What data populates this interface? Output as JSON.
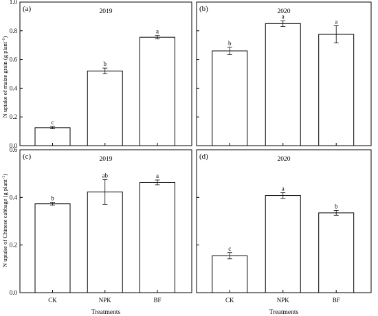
{
  "figure": {
    "xlabel": "Treatments",
    "ylabel_top_main": "N uptake of maize grain (g plant",
    "ylabel_bottom_main": "N uptake of Chinese cabbage (g plant",
    "ylabel_suffix": ")",
    "ylabel_sup": "-1"
  },
  "chart_data": [
    {
      "type": "bar",
      "panel_label": "(a)",
      "title": "2019",
      "categories": [
        "CK",
        "NPK",
        "BF"
      ],
      "values": [
        0.125,
        0.52,
        0.755
      ],
      "errors": [
        0.008,
        0.02,
        0.012
      ],
      "significance": [
        "c",
        "b",
        "a"
      ],
      "ylim": [
        0,
        1.0
      ],
      "yticks": [
        "0.0",
        "0.2",
        "0.4",
        "0.6",
        "0.8",
        "1.0"
      ],
      "grid": false
    },
    {
      "type": "bar",
      "panel_label": "(b)",
      "title": "2020",
      "categories": [
        "CK",
        "NPK",
        "BF"
      ],
      "values": [
        0.66,
        0.85,
        0.775
      ],
      "errors": [
        0.025,
        0.02,
        0.06
      ],
      "significance": [
        "b",
        "a",
        "a"
      ],
      "ylim": [
        0,
        1.0
      ],
      "grid": false
    },
    {
      "type": "bar",
      "panel_label": "(c)",
      "title": "2019",
      "categories": [
        "CK",
        "NPK",
        "BF"
      ],
      "values": [
        0.373,
        0.423,
        0.463
      ],
      "errors": [
        0.006,
        0.052,
        0.01
      ],
      "significance": [
        "b",
        "ab",
        "a"
      ],
      "ylim": [
        0,
        0.6
      ],
      "yticks": [
        "0.0",
        "0.2",
        "0.4",
        "0.6"
      ],
      "xticks": [
        "CK",
        "NPK",
        "BF"
      ],
      "grid": false
    },
    {
      "type": "bar",
      "panel_label": "(d)",
      "title": "2020",
      "categories": [
        "CK",
        "NPK",
        "BF"
      ],
      "values": [
        0.155,
        0.408,
        0.335
      ],
      "errors": [
        0.013,
        0.012,
        0.01
      ],
      "significance": [
        "c",
        "a",
        "b"
      ],
      "ylim": [
        0,
        0.6
      ],
      "xticks": [
        "CK",
        "NPK",
        "BF"
      ],
      "grid": false
    }
  ]
}
